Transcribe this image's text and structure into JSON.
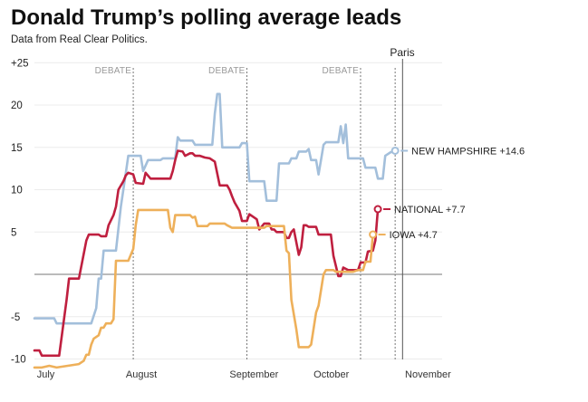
{
  "chart_data": {
    "type": "line",
    "title": "Donald Trump’s polling average leads",
    "subtitle": "Data from Real Clear Politics.",
    "xlabel": "",
    "ylabel": "",
    "x_unit": "day (0 = July 1, 2015)",
    "xlim": [
      0,
      165
    ],
    "ylim": [
      -10,
      25
    ],
    "y_ticks": [
      {
        "value": 25,
        "label": "+25"
      },
      {
        "value": 20,
        "label": "20"
      },
      {
        "value": 15,
        "label": "15"
      },
      {
        "value": 10,
        "label": "10"
      },
      {
        "value": 5,
        "label": "5"
      },
      {
        "value": -5,
        "label": "-5"
      },
      {
        "value": -10,
        "label": "-10"
      }
    ],
    "x_ticks": [
      {
        "value": 1,
        "label": "July"
      },
      {
        "value": 37,
        "label": "August"
      },
      {
        "value": 79,
        "label": "September"
      },
      {
        "value": 113,
        "label": "October"
      },
      {
        "value": 150,
        "label": "November"
      }
    ],
    "zero_line": 0,
    "annotations": [
      {
        "x": 40,
        "label": "DEBATE"
      },
      {
        "x": 86,
        "label": "DEBATE"
      },
      {
        "x": 132,
        "label": "DEBATE"
      },
      {
        "x": 146,
        "label": ""
      },
      {
        "x": 149,
        "label": "Paris"
      }
    ],
    "series": [
      {
        "name": "NEW HAMPSHIRE",
        "label": "NEW HAMPSHIRE +14.6",
        "color": "#a3bfdb",
        "final": 14.6,
        "points": [
          [
            0,
            -5.2
          ],
          [
            8,
            -5.2
          ],
          [
            9,
            -5.8
          ],
          [
            23,
            -5.8
          ],
          [
            25,
            -4
          ],
          [
            26,
            -0.5
          ],
          [
            27,
            -0.5
          ],
          [
            28,
            2.8
          ],
          [
            33,
            2.8
          ],
          [
            35,
            8
          ],
          [
            37,
            12
          ],
          [
            38,
            14
          ],
          [
            43,
            14
          ],
          [
            44,
            12.2
          ],
          [
            46,
            13.5
          ],
          [
            51,
            13.5
          ],
          [
            52,
            13.7
          ],
          [
            57,
            13.7
          ],
          [
            58,
            16.2
          ],
          [
            59,
            15.8
          ],
          [
            64,
            15.8
          ],
          [
            65,
            15.3
          ],
          [
            72,
            15.3
          ],
          [
            73,
            19
          ],
          [
            74,
            21.3
          ],
          [
            75,
            21.3
          ],
          [
            76,
            15
          ],
          [
            83,
            15
          ],
          [
            84,
            15.5
          ],
          [
            86,
            15.5
          ],
          [
            87,
            11
          ],
          [
            93,
            11
          ],
          [
            94,
            8.7
          ],
          [
            98,
            8.7
          ],
          [
            99,
            13.1
          ],
          [
            103,
            13.1
          ],
          [
            104,
            13.7
          ],
          [
            106,
            13.7
          ],
          [
            107,
            14.5
          ],
          [
            110,
            14.5
          ],
          [
            111,
            14.8
          ],
          [
            112,
            13.5
          ],
          [
            114,
            13.5
          ],
          [
            115,
            11.8
          ],
          [
            116,
            13.5
          ],
          [
            117,
            15.3
          ],
          [
            118,
            15.6
          ],
          [
            123,
            15.6
          ],
          [
            124,
            17.5
          ],
          [
            125,
            15.5
          ],
          [
            126,
            17.7
          ],
          [
            127,
            13.7
          ],
          [
            133,
            13.7
          ],
          [
            134,
            12.6
          ],
          [
            138,
            12.6
          ],
          [
            139,
            11.3
          ],
          [
            141,
            11.3
          ],
          [
            142,
            14
          ],
          [
            144,
            14.4
          ],
          [
            146,
            14.6
          ]
        ]
      },
      {
        "name": "NATIONAL",
        "label": "NATIONAL +7.7",
        "color": "#bf1f3f",
        "final": 7.7,
        "points": [
          [
            0,
            -9
          ],
          [
            2,
            -9
          ],
          [
            3,
            -9.6
          ],
          [
            10,
            -9.6
          ],
          [
            13,
            -3
          ],
          [
            14,
            -0.5
          ],
          [
            18,
            -0.5
          ],
          [
            21,
            4
          ],
          [
            22,
            4.7
          ],
          [
            26,
            4.7
          ],
          [
            27,
            4.5
          ],
          [
            29,
            4.5
          ],
          [
            30,
            5.8
          ],
          [
            32,
            7
          ],
          [
            33,
            8
          ],
          [
            34,
            10
          ],
          [
            36,
            11
          ],
          [
            37,
            11.7
          ],
          [
            38,
            12
          ],
          [
            40,
            11.8
          ],
          [
            41,
            10.8
          ],
          [
            44,
            10.7
          ],
          [
            45,
            12
          ],
          [
            47,
            11.3
          ],
          [
            55,
            11.3
          ],
          [
            56,
            12.2
          ],
          [
            57,
            13.5
          ],
          [
            58,
            14.6
          ],
          [
            60,
            14.5
          ],
          [
            61,
            14
          ],
          [
            63,
            14.3
          ],
          [
            64,
            14.3
          ],
          [
            65,
            14
          ],
          [
            67,
            14
          ],
          [
            69,
            13.8
          ],
          [
            71,
            13.7
          ],
          [
            73,
            13.3
          ],
          [
            75,
            10.5
          ],
          [
            78,
            10.5
          ],
          [
            79,
            10
          ],
          [
            80,
            9.2
          ],
          [
            81,
            8.5
          ],
          [
            83,
            7.5
          ],
          [
            84,
            6.3
          ],
          [
            86,
            6.3
          ],
          [
            87,
            7.1
          ],
          [
            90,
            6.5
          ],
          [
            91,
            5.3
          ],
          [
            93,
            6
          ],
          [
            95,
            6
          ],
          [
            96,
            5.3
          ],
          [
            97,
            5.3
          ],
          [
            98,
            5
          ],
          [
            101,
            5
          ],
          [
            102,
            4.3
          ],
          [
            103,
            4.3
          ],
          [
            104,
            5
          ],
          [
            105,
            5.3
          ],
          [
            107,
            2.3
          ],
          [
            108,
            3.2
          ],
          [
            109,
            5.8
          ],
          [
            110,
            5.8
          ],
          [
            111,
            5.6
          ],
          [
            114,
            5.6
          ],
          [
            115,
            4.7
          ],
          [
            120,
            4.7
          ],
          [
            121,
            2.2
          ],
          [
            122,
            1
          ],
          [
            123,
            -0.2
          ],
          [
            124,
            -0.2
          ],
          [
            125,
            0.8
          ],
          [
            127,
            0.5
          ],
          [
            131,
            0.5
          ],
          [
            132,
            1.4
          ],
          [
            134,
            1.4
          ],
          [
            135,
            2.7
          ],
          [
            137,
            2.8
          ],
          [
            138,
            4
          ],
          [
            139,
            7.7
          ]
        ]
      },
      {
        "name": "IOWA",
        "label": "IOWA +4.7",
        "color": "#eeb05a",
        "final": 4.7,
        "points": [
          [
            0,
            -11
          ],
          [
            3,
            -11
          ],
          [
            6,
            -10.8
          ],
          [
            9,
            -11
          ],
          [
            18,
            -10.6
          ],
          [
            20,
            -10.2
          ],
          [
            21,
            -9.5
          ],
          [
            22,
            -9.5
          ],
          [
            23,
            -8.3
          ],
          [
            24,
            -7.6
          ],
          [
            26,
            -7.2
          ],
          [
            27,
            -6.3
          ],
          [
            28,
            -6.3
          ],
          [
            29,
            -5.8
          ],
          [
            31,
            -5.8
          ],
          [
            32,
            -5.3
          ],
          [
            33,
            1.6
          ],
          [
            38,
            1.6
          ],
          [
            40,
            3
          ],
          [
            41,
            5.8
          ],
          [
            42,
            7.6
          ],
          [
            54,
            7.6
          ],
          [
            55,
            5.5
          ],
          [
            56,
            5
          ],
          [
            57,
            7
          ],
          [
            63,
            7
          ],
          [
            64,
            6.7
          ],
          [
            65,
            6.8
          ],
          [
            66,
            5.7
          ],
          [
            70,
            5.7
          ],
          [
            71,
            6
          ],
          [
            77,
            6
          ],
          [
            78,
            5.8
          ],
          [
            80,
            5.5
          ],
          [
            93,
            5.5
          ],
          [
            94,
            5.7
          ],
          [
            101,
            5.7
          ],
          [
            102,
            2.8
          ],
          [
            103,
            2.5
          ],
          [
            104,
            -3
          ],
          [
            106,
            -6.5
          ],
          [
            107,
            -8.6
          ],
          [
            111,
            -8.6
          ],
          [
            112,
            -8.3
          ],
          [
            114,
            -4.5
          ],
          [
            115,
            -3.7
          ],
          [
            117,
            0
          ],
          [
            118,
            0.5
          ],
          [
            121,
            0.5
          ],
          [
            122,
            0.3
          ],
          [
            129,
            0.3
          ],
          [
            131,
            0.5
          ],
          [
            133,
            0.5
          ],
          [
            134,
            1.5
          ],
          [
            136,
            1.5
          ],
          [
            137,
            4.7
          ]
        ]
      }
    ]
  }
}
